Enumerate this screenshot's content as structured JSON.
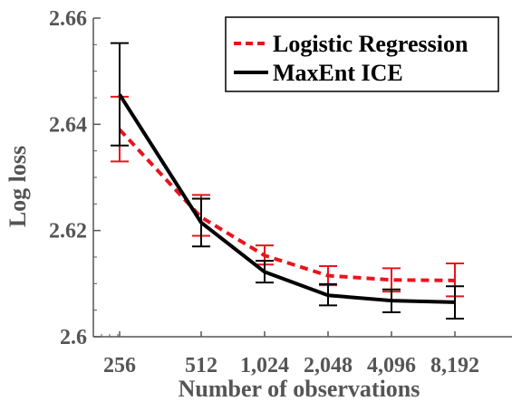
{
  "chart_data": {
    "type": "line",
    "title": "",
    "xlabel": "Number of observations",
    "ylabel": "Log loss",
    "categories": [
      "256",
      "512",
      "1,024",
      "2,048",
      "4,096",
      "8,192"
    ],
    "ylim": [
      2.6,
      2.66
    ],
    "yticks": [
      "2.6",
      "2.62",
      "2.64",
      "2.66"
    ],
    "yticks_values": [
      2.6,
      2.62,
      2.64,
      2.66
    ],
    "grid": false,
    "legend_position": "top-right",
    "series": [
      {
        "name": "Logistic Regression",
        "color": "#e8141c",
        "style": "dashed",
        "values": [
          2.639,
          2.6225,
          2.6153,
          2.6115,
          2.6107,
          2.6106
        ],
        "err_low": [
          2.633,
          2.619,
          2.6136,
          2.6097,
          2.6085,
          2.6076
        ],
        "err_high": [
          2.6452,
          2.6267,
          2.6172,
          2.6133,
          2.6129,
          2.6138
        ]
      },
      {
        "name": "MaxEnt ICE",
        "color": "#000000",
        "style": "solid",
        "values": [
          2.6456,
          2.6215,
          2.6122,
          2.6078,
          2.6068,
          2.6065
        ],
        "err_low": [
          2.636,
          2.617,
          2.6102,
          2.6059,
          2.6046,
          2.6034
        ],
        "err_high": [
          2.6553,
          2.626,
          2.6143,
          2.6099,
          2.6089,
          2.6095
        ]
      }
    ]
  }
}
